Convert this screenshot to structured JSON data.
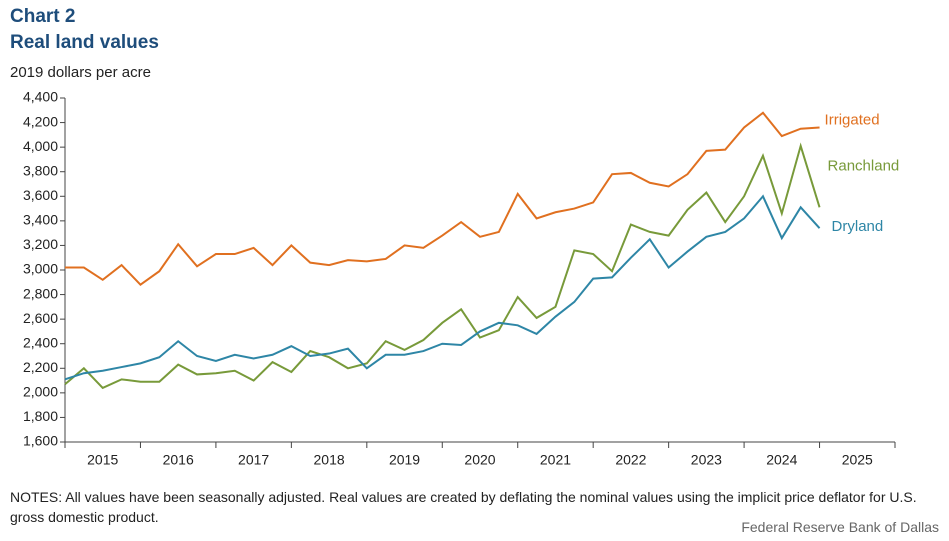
{
  "chart_data": {
    "type": "line",
    "title": "Chart 2",
    "subtitle": "Real land values",
    "y_axis_label": "2019 dollars per acre",
    "notes": "NOTES: All values have been seasonally adjusted. Real values are created by deflating the nominal values using the implicit price deflator for U.S. gross domestic product.",
    "source": "Federal Reserve Bank of Dallas",
    "x": [
      2015,
      2015.25,
      2015.5,
      2015.75,
      2016,
      2016.25,
      2016.5,
      2016.75,
      2017,
      2017.25,
      2017.5,
      2017.75,
      2018,
      2018.25,
      2018.5,
      2018.75,
      2019,
      2019.25,
      2019.5,
      2019.75,
      2020,
      2020.25,
      2020.5,
      2020.75,
      2021,
      2021.25,
      2021.5,
      2021.75,
      2022,
      2022.25,
      2022.5,
      2022.75,
      2023,
      2023.25,
      2023.5,
      2023.75,
      2024,
      2024.25,
      2024.5,
      2024.75,
      2025
    ],
    "series": [
      {
        "name": "Irrigated",
        "color": "#e07020",
        "values": [
          3020,
          3020,
          2920,
          3040,
          2880,
          2990,
          3210,
          3030,
          3130,
          3130,
          3180,
          3040,
          3200,
          3060,
          3040,
          3080,
          3070,
          3090,
          3200,
          3180,
          3280,
          3390,
          3270,
          3310,
          3620,
          3420,
          3470,
          3500,
          3550,
          3780,
          3790,
          3710,
          3680,
          3780,
          3970,
          3980,
          4160,
          4280,
          4090,
          4150,
          4160
        ]
      },
      {
        "name": "Ranchland",
        "color": "#789a3a",
        "values": [
          2070,
          2200,
          2040,
          2110,
          2090,
          2090,
          2230,
          2150,
          2160,
          2180,
          2100,
          2250,
          2170,
          2340,
          2290,
          2200,
          2240,
          2420,
          2350,
          2430,
          2570,
          2680,
          2450,
          2510,
          2780,
          2610,
          2700,
          3160,
          3130,
          2990,
          3370,
          3310,
          3280,
          3490,
          3630,
          3390,
          3600,
          3930,
          3460,
          4010,
          3510
        ]
      },
      {
        "name": "Dryland",
        "color": "#2e86a6",
        "values": [
          2110,
          2160,
          2180,
          2210,
          2240,
          2290,
          2420,
          2300,
          2260,
          2310,
          2280,
          2310,
          2380,
          2300,
          2320,
          2360,
          2200,
          2310,
          2310,
          2340,
          2400,
          2390,
          2500,
          2570,
          2550,
          2480,
          2620,
          2740,
          2930,
          2940,
          3100,
          3250,
          3020,
          3150,
          3270,
          3310,
          3420,
          3600,
          3260,
          3510,
          3340
        ]
      }
    ],
    "xlim": [
      2015,
      2026
    ],
    "xticks": [
      2015,
      2016,
      2017,
      2018,
      2019,
      2020,
      2021,
      2022,
      2023,
      2024,
      2025,
      2026
    ],
    "year_labels": [
      2015,
      2016,
      2017,
      2018,
      2019,
      2020,
      2021,
      2022,
      2023,
      2024,
      2025
    ],
    "ylim": [
      1600,
      4400
    ],
    "yticks": [
      {
        "value": 1600,
        "label": "1,600"
      },
      {
        "value": 1800,
        "label": "1,800"
      },
      {
        "value": 2000,
        "label": "2,000"
      },
      {
        "value": 2200,
        "label": "2,200"
      },
      {
        "value": 2400,
        "label": "2,400"
      },
      {
        "value": 2600,
        "label": "2,600"
      },
      {
        "value": 2800,
        "label": "2,800"
      },
      {
        "value": 3000,
        "label": "3,000"
      },
      {
        "value": 3200,
        "label": "3,200"
      },
      {
        "value": 3400,
        "label": "3,400"
      },
      {
        "value": 3600,
        "label": "3,600"
      },
      {
        "value": 3800,
        "label": "3,800"
      },
      {
        "value": 4000,
        "label": "4,000"
      },
      {
        "value": 4200,
        "label": "4,200"
      },
      {
        "value": 4400,
        "label": "4,400"
      }
    ],
    "grid": false
  }
}
